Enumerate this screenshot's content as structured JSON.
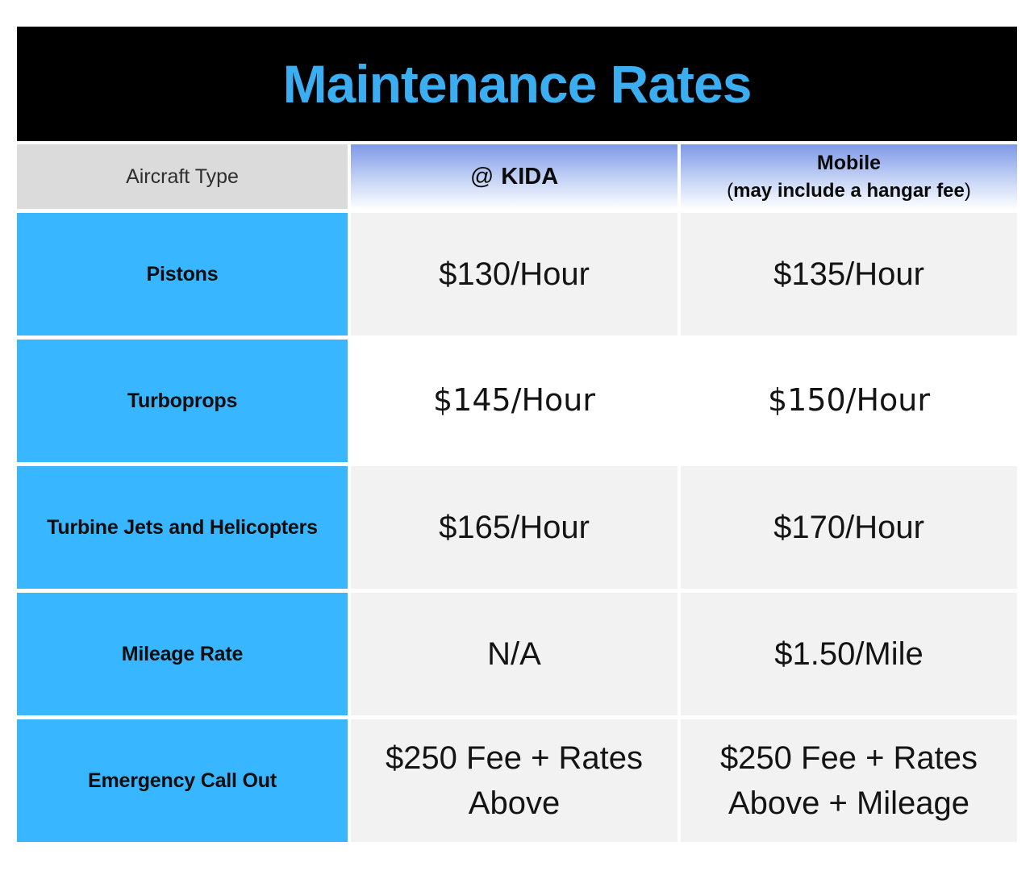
{
  "title": "Maintenance Rates",
  "colors": {
    "title_blue": "#3BAEF2",
    "row_label_blue": "#38B6FF",
    "header_gradient_top": "#7E99E8",
    "aircraft_header_gray": "#DBDBDB",
    "value_cell_gray": "#F2F2F2",
    "band_black": "#000000"
  },
  "table": {
    "columns": {
      "aircraft": {
        "label": "Aircraft Type"
      },
      "kida": {
        "prefix": "@",
        "label": "KIDA"
      },
      "mobile": {
        "label": "Mobile",
        "paren_open": "(",
        "sub_label": "may include a hangar fee",
        "paren_close": ")"
      }
    },
    "rows": [
      {
        "label": "Pistons",
        "kida": "$130/Hour",
        "mobile": "$135/Hour"
      },
      {
        "label": "Turboprops",
        "kida": "$145/Hour",
        "mobile": "$150/Hour"
      },
      {
        "label": "Turbine Jets and Helicopters",
        "kida": "$165/Hour",
        "mobile": "$170/Hour"
      },
      {
        "label": "Mileage Rate",
        "kida": "N/A",
        "mobile": "$1.50/Mile"
      },
      {
        "label": "Emergency Call Out",
        "kida": "$250 Fee + Rates Above",
        "mobile": "$250 Fee + Rates Above + Mileage"
      }
    ]
  }
}
